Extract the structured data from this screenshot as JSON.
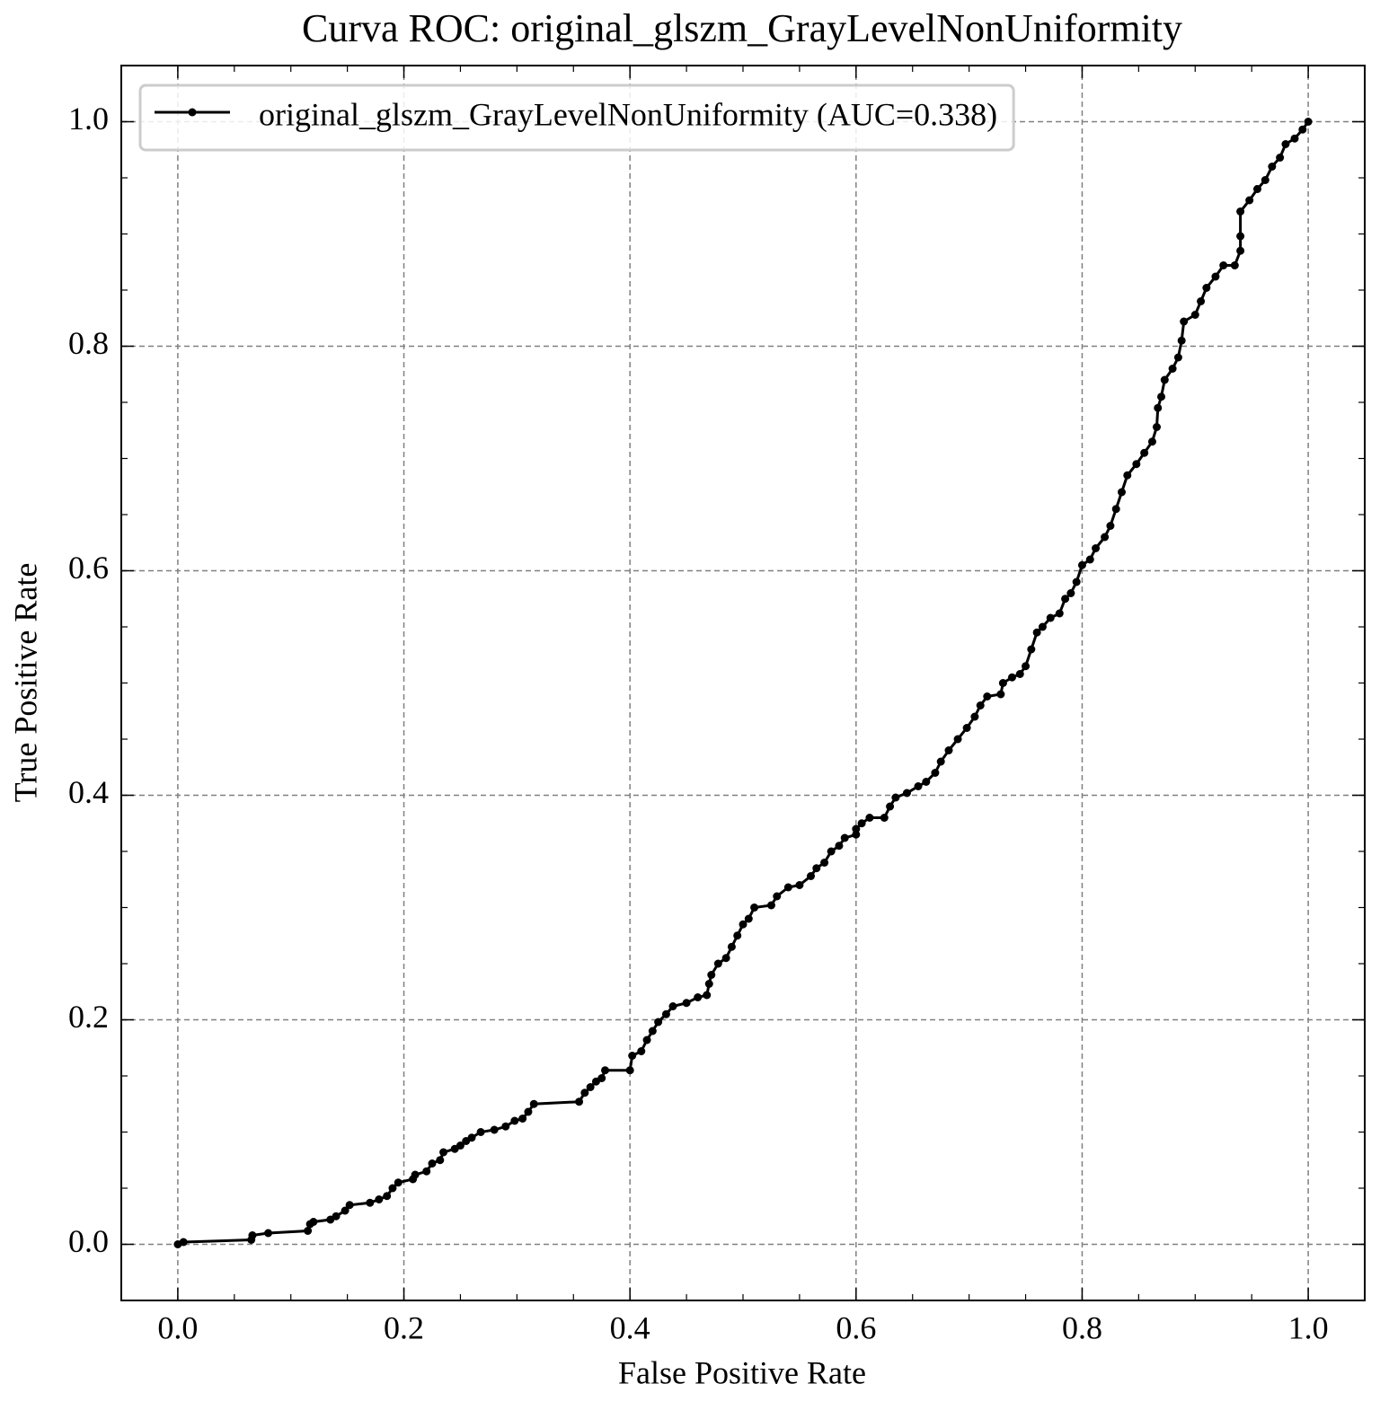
{
  "chart_data": {
    "type": "line",
    "title": "Curva ROC: original_glszm_GrayLevelNonUniformity",
    "x_label": "False Positive Rate",
    "y_label": "True Positive Rate",
    "xlim": [
      -0.05,
      1.05
    ],
    "ylim": [
      -0.05,
      1.05
    ],
    "xticks": [
      {
        "value": 0,
        "label": "0.0"
      },
      0.2,
      0.4,
      0.6,
      0.8,
      {
        "value": 1,
        "label": "1.0"
      }
    ],
    "yticks": [
      {
        "value": 0,
        "label": "0.0"
      },
      0.2,
      0.4,
      0.6,
      0.8,
      {
        "value": 1,
        "label": "1.0"
      }
    ],
    "grid": true,
    "minor_ticks": true,
    "legend": "upper left",
    "series": [
      {
        "name": "original_glszm_GrayLevelNonUniformity (AUC=0.338)",
        "color": "#000000",
        "x": [
          0,
          0.005,
          0.065,
          0.066,
          0.08,
          0.115,
          0.117,
          0.12,
          0.135,
          0.14,
          0.148,
          0.152,
          0.17,
          0.178,
          0.185,
          0.19,
          0.195,
          0.208,
          0.21,
          0.22,
          0.225,
          0.232,
          0.235,
          0.245,
          0.25,
          0.255,
          0.26,
          0.268,
          0.28,
          0.29,
          0.298,
          0.305,
          0.31,
          0.315,
          0.355,
          0.36,
          0.365,
          0.37,
          0.375,
          0.378,
          0.4,
          0.402,
          0.41,
          0.415,
          0.42,
          0.425,
          0.432,
          0.438,
          0.45,
          0.46,
          0.468,
          0.47,
          0.472,
          0.478,
          0.485,
          0.49,
          0.495,
          0.5,
          0.505,
          0.51,
          0.525,
          0.53,
          0.54,
          0.55,
          0.56,
          0.565,
          0.572,
          0.578,
          0.585,
          0.59,
          0.6,
          0.6,
          0.605,
          0.612,
          0.625,
          0.63,
          0.635,
          0.645,
          0.655,
          0.662,
          0.67,
          0.675,
          0.682,
          0.69,
          0.698,
          0.705,
          0.71,
          0.716,
          0.728,
          0.73,
          0.738,
          0.745,
          0.75,
          0.755,
          0.76,
          0.765,
          0.772,
          0.78,
          0.785,
          0.79,
          0.795,
          0.8,
          0.807,
          0.812,
          0.82,
          0.825,
          0.83,
          0.835,
          0.84,
          0.848,
          0.855,
          0.862,
          0.866,
          0.867,
          0.87,
          0.873,
          0.88,
          0.885,
          0.888,
          0.89,
          0.9,
          0.905,
          0.91,
          0.918,
          0.925,
          0.935,
          0.94,
          0.94,
          0.94,
          0.948,
          0.955,
          0.962,
          0.968,
          0.975,
          0.98,
          0.988,
          0.995,
          1
        ],
        "values": [
          0,
          0.002,
          0.004,
          0.008,
          0.01,
          0.012,
          0.018,
          0.02,
          0.022,
          0.025,
          0.03,
          0.035,
          0.037,
          0.04,
          0.043,
          0.05,
          0.055,
          0.058,
          0.062,
          0.065,
          0.072,
          0.075,
          0.082,
          0.085,
          0.088,
          0.092,
          0.095,
          0.1,
          0.102,
          0.105,
          0.11,
          0.112,
          0.118,
          0.125,
          0.127,
          0.135,
          0.14,
          0.145,
          0.148,
          0.155,
          0.155,
          0.168,
          0.172,
          0.182,
          0.19,
          0.198,
          0.205,
          0.212,
          0.215,
          0.22,
          0.222,
          0.232,
          0.24,
          0.25,
          0.255,
          0.265,
          0.275,
          0.285,
          0.29,
          0.3,
          0.302,
          0.31,
          0.318,
          0.32,
          0.328,
          0.335,
          0.34,
          0.35,
          0.355,
          0.362,
          0.365,
          0.37,
          0.375,
          0.38,
          0.38,
          0.39,
          0.398,
          0.402,
          0.408,
          0.412,
          0.42,
          0.43,
          0.44,
          0.45,
          0.46,
          0.47,
          0.48,
          0.488,
          0.49,
          0.5,
          0.505,
          0.508,
          0.515,
          0.53,
          0.545,
          0.55,
          0.558,
          0.562,
          0.575,
          0.58,
          0.59,
          0.605,
          0.61,
          0.62,
          0.63,
          0.64,
          0.655,
          0.67,
          0.685,
          0.695,
          0.705,
          0.715,
          0.728,
          0.745,
          0.755,
          0.77,
          0.78,
          0.79,
          0.805,
          0.822,
          0.828,
          0.84,
          0.852,
          0.862,
          0.872,
          0.872,
          0.885,
          0.898,
          0.92,
          0.93,
          0.94,
          0.948,
          0.96,
          0.968,
          0.98,
          0.985,
          0.993,
          1
        ]
      }
    ]
  }
}
